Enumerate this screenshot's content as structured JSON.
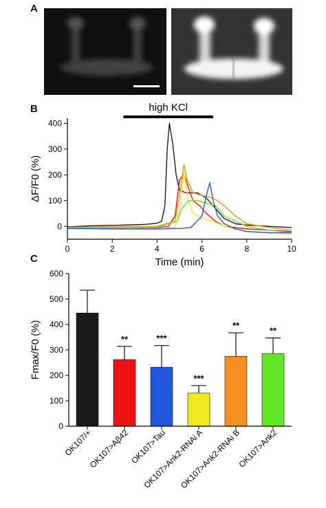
{
  "panels": {
    "a": "A",
    "b": "B",
    "c": "C"
  },
  "colors": {
    "black": "#1a1a1a",
    "red": "#ee1111",
    "blue": "#2255dd",
    "yellow": "#f2e81c",
    "orange": "#f59020",
    "green": "#62e627"
  },
  "chart_data": [
    {
      "type": "line",
      "title": "",
      "stimulus_label": "high KCl",
      "stimulus_range": [
        2.5,
        6.5
      ],
      "xlabel": "Time (min)",
      "ylabel": "ΔF/F0 (%)",
      "xlim": [
        0,
        10
      ],
      "ylim": [
        -50,
        420
      ],
      "xticks": [
        0,
        2,
        4,
        6,
        8,
        10
      ],
      "yticks": [
        0,
        100,
        200,
        300,
        400
      ],
      "series": [
        {
          "color": "black",
          "x": [
            0,
            1,
            2,
            3,
            3.5,
            4,
            4.2,
            4.35,
            4.45,
            4.55,
            4.7,
            4.85,
            5.0,
            5.3,
            5.8,
            6.2,
            6.6,
            7.0,
            7.5,
            8.0,
            9.0,
            10
          ],
          "y": [
            -2,
            2,
            4,
            6,
            8,
            12,
            20,
            80,
            300,
            400,
            320,
            200,
            140,
            130,
            130,
            110,
            70,
            30,
            10,
            5,
            0,
            -5
          ]
        },
        {
          "color": "red",
          "x": [
            0,
            2,
            4,
            4.5,
            4.8,
            5.0,
            5.2,
            5.4,
            5.6,
            5.9,
            6.2,
            6.6,
            7,
            8,
            9,
            10
          ],
          "y": [
            -5,
            -5,
            -5,
            0,
            40,
            180,
            205,
            150,
            100,
            80,
            50,
            20,
            0,
            -10,
            -15,
            -20
          ]
        },
        {
          "color": "orange",
          "x": [
            0,
            2,
            4,
            4.8,
            5.0,
            5.2,
            5.35,
            5.6,
            6.0,
            6.5,
            7.0,
            7.5,
            8,
            9,
            10
          ],
          "y": [
            -3,
            -2,
            0,
            20,
            120,
            240,
            180,
            130,
            120,
            110,
            80,
            40,
            10,
            -5,
            -15
          ]
        },
        {
          "color": "yellow",
          "x": [
            0,
            2,
            4,
            4.8,
            5.0,
            5.2,
            5.4,
            5.6,
            6.0,
            6.5,
            7,
            8,
            10
          ],
          "y": [
            -8,
            -10,
            -10,
            -5,
            60,
            210,
            100,
            50,
            30,
            20,
            0,
            -20,
            -30
          ]
        },
        {
          "color": "green",
          "x": [
            0,
            2,
            4,
            4.9,
            5.1,
            5.4,
            5.8,
            6.2,
            6.6,
            7,
            8,
            9,
            10
          ],
          "y": [
            -5,
            -5,
            -3,
            20,
            70,
            100,
            100,
            90,
            80,
            40,
            0,
            -15,
            -25
          ]
        },
        {
          "color": "blue",
          "x": [
            0,
            2,
            4,
            5,
            5.5,
            6.0,
            6.2,
            6.35,
            6.5,
            6.7,
            7.0,
            7.5,
            8,
            9,
            10
          ],
          "y": [
            -8,
            -10,
            -10,
            -8,
            -5,
            40,
            120,
            170,
            100,
            40,
            10,
            -10,
            -20,
            -25,
            -25
          ]
        }
      ]
    },
    {
      "type": "bar",
      "title": "",
      "xlabel": "",
      "ylabel": "Fmax/F0 (%)",
      "ylim": [
        0,
        600
      ],
      "yticks": [
        0,
        100,
        200,
        300,
        400,
        500,
        600
      ],
      "categories": [
        "OK107/+",
        "OK107>Aβ42",
        "OK107>Tau",
        "OK107>Ank2-RNAi A",
        "OK107>Ank2-RNAi B",
        "OK107>Ank2"
      ],
      "values": [
        445,
        262,
        232,
        130,
        275,
        285
      ],
      "errors": [
        90,
        52,
        85,
        30,
        92,
        62
      ],
      "significance": [
        "",
        "**",
        "***",
        "***",
        "**",
        "**"
      ],
      "bar_colors": [
        "black",
        "red",
        "blue",
        "yellow",
        "orange",
        "green"
      ]
    }
  ]
}
